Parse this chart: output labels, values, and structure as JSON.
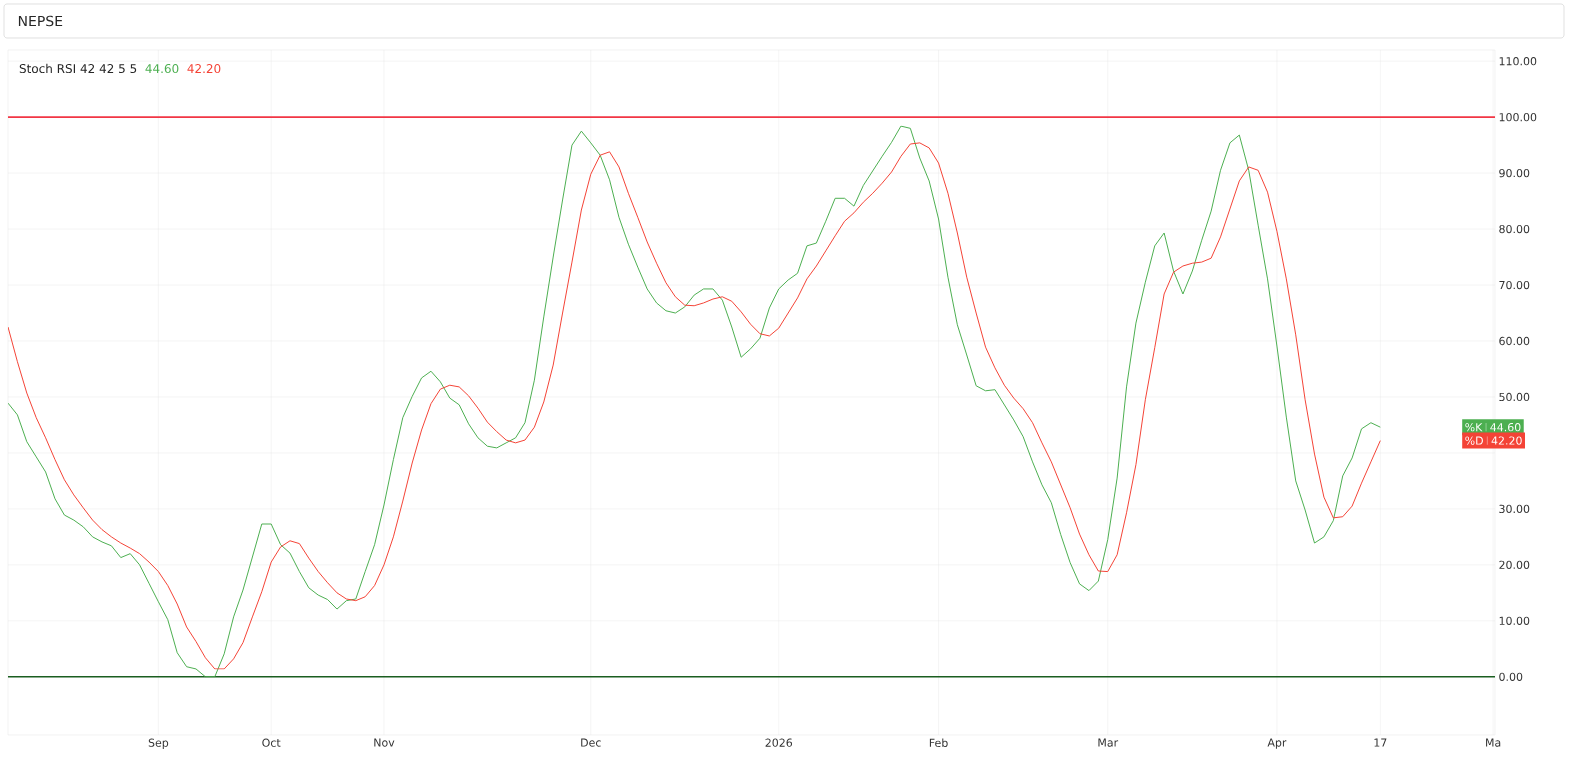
{
  "chart_data": {
    "type": "line",
    "title": "NEPSE",
    "annotations": [
      "Stoch RSI 42 42 5 5",
      "44.60",
      "42.20"
    ],
    "categories": [
      null,
      null,
      null,
      null,
      null,
      null,
      null,
      null,
      null,
      null,
      null,
      null,
      null,
      null,
      null,
      null,
      "Sep",
      null,
      null,
      null,
      null,
      null,
      null,
      null,
      null,
      null,
      null,
      null,
      "Oct",
      null,
      null,
      null,
      null,
      null,
      null,
      null,
      null,
      null,
      null,
      null,
      "Nov",
      null,
      null,
      null,
      null,
      null,
      null,
      null,
      null,
      null,
      null,
      null,
      null,
      null,
      null,
      null,
      null,
      null,
      null,
      null,
      null,
      null,
      "Dec",
      null,
      null,
      null,
      null,
      null,
      null,
      null,
      null,
      null,
      null,
      null,
      null,
      null,
      null,
      null,
      null,
      null,
      null,
      null,
      "2026",
      null,
      null,
      null,
      null,
      null,
      null,
      null,
      null,
      null,
      null,
      null,
      null,
      null,
      null,
      null,
      null,
      "Feb",
      null,
      null,
      null,
      null,
      null,
      null,
      null,
      null,
      null,
      null,
      null,
      null,
      null,
      null,
      null,
      null,
      null,
      "Mar",
      null,
      null,
      null,
      null,
      null,
      null,
      null,
      null,
      null,
      null,
      null,
      null,
      null,
      null,
      null,
      null,
      null,
      "Apr",
      null,
      null,
      null,
      null,
      null,
      null,
      null,
      null,
      null,
      null,
      "17",
      null,
      null,
      null,
      null,
      null,
      null,
      null,
      null,
      null,
      null,
      null,
      "Ma"
    ],
    "series": [
      {
        "name": "%K",
        "color": "#4caf50",
        "values": [
          48.9,
          46.8,
          42,
          39.3,
          36.6,
          31.8,
          28.9,
          28,
          26.8,
          25,
          24.1,
          23.4,
          21.3,
          22,
          20,
          16.7,
          13.4,
          10.2,
          4.3,
          1.8,
          1.4,
          0,
          0,
          4.1,
          10.7,
          15.5,
          21.4,
          27.3,
          27.3,
          23.6,
          22.1,
          18.8,
          15.9,
          14.6,
          13.8,
          12.1,
          13.6,
          13.9,
          18.8,
          23.6,
          30.7,
          38.8,
          46.3,
          50.1,
          53.4,
          54.6,
          52.7,
          49.8,
          48.6,
          45.2,
          42.7,
          41.2,
          40.9,
          41.8,
          42.7,
          45.4,
          53,
          64.3,
          75,
          85.2,
          95,
          97.5,
          95.4,
          93.2,
          88.8,
          82.1,
          77.3,
          73.2,
          69.3,
          66.8,
          65.4,
          65,
          66.1,
          68.2,
          69.3,
          69.3,
          67.3,
          62.5,
          57.1,
          58.6,
          60.5,
          65.9,
          69.3,
          70.9,
          72.1,
          77,
          77.5,
          81.4,
          85.5,
          85.5,
          84.1,
          87.8,
          90.4,
          93,
          95.5,
          98.4,
          98,
          92.7,
          88.6,
          81.8,
          71.4,
          62.9,
          57.5,
          52,
          51.1,
          51.3,
          48.6,
          45.9,
          42.9,
          38.4,
          34.3,
          31.1,
          25.4,
          20.4,
          16.6,
          15.4,
          17.1,
          24.5,
          35.5,
          51.8,
          63.2,
          70.5,
          77,
          79.3,
          72.5,
          68.4,
          72.5,
          78,
          83.2,
          90.5,
          95.4,
          96.8,
          90.5,
          80.7,
          71.1,
          59.1,
          46.4,
          35,
          29.8,
          23.9,
          25,
          27.9,
          35.9,
          39.1,
          44.3,
          45.4,
          44.6,
          null,
          null,
          null,
          null,
          null,
          null,
          null,
          null,
          null,
          null,
          null,
          null
        ]
      },
      {
        "name": "%D",
        "color": "#f44336",
        "values": [
          62.5,
          56.3,
          50.7,
          46.3,
          42.7,
          38.8,
          35.2,
          32.5,
          30.2,
          28,
          26.3,
          25,
          23.9,
          23,
          22,
          20.5,
          18.8,
          16.3,
          13,
          8.9,
          6.3,
          3.4,
          1.4,
          1.4,
          3.2,
          6.1,
          10.7,
          15.2,
          20.5,
          23.2,
          24.3,
          23.8,
          21.2,
          18.8,
          16.8,
          15,
          13.9,
          13.6,
          14.3,
          16.3,
          20,
          25,
          31.4,
          38.2,
          44.1,
          48.8,
          51.4,
          52.1,
          51.8,
          50.2,
          48,
          45.5,
          43.8,
          42.3,
          41.8,
          42.3,
          44.6,
          49.1,
          55.7,
          65,
          74.1,
          83.4,
          89.8,
          93.2,
          93.8,
          91.1,
          86.4,
          82.1,
          77.7,
          73.9,
          70.4,
          67.9,
          66.4,
          66.3,
          66.8,
          67.5,
          67.9,
          67.1,
          65.2,
          63,
          61.3,
          60.9,
          62.3,
          65,
          67.7,
          71.1,
          73.4,
          76.1,
          78.8,
          81.4,
          82.9,
          84.8,
          86.4,
          88.2,
          90.2,
          93,
          95.2,
          95.4,
          94.5,
          91.8,
          86.4,
          79.3,
          71.4,
          65,
          58.9,
          55.2,
          52.1,
          49.8,
          47.9,
          45.4,
          41.8,
          38.4,
          34.3,
          30.2,
          25.5,
          21.8,
          18.9,
          18.8,
          21.8,
          29.3,
          37.9,
          49.5,
          58.8,
          68.4,
          72.3,
          73.4,
          73.9,
          74.1,
          74.8,
          78.6,
          83.6,
          88.6,
          91.1,
          90.5,
          86.6,
          79.6,
          71.1,
          61.1,
          49.5,
          39.8,
          32.1,
          28.4,
          28.6,
          30.5,
          34.6,
          38.4,
          42.2,
          null,
          null,
          null,
          null,
          null,
          null,
          null,
          null,
          null,
          null,
          null,
          null
        ]
      }
    ],
    "ref_lines": [
      {
        "axis": "y",
        "value": 100,
        "color": "#f23645"
      },
      {
        "axis": "y",
        "value": 0,
        "color": "#1b5e20"
      }
    ],
    "ylim": [
      -10.4,
      112
    ],
    "yticks": [
      {
        "value": 0,
        "label": "0.00"
      },
      {
        "value": 10,
        "label": "10.00"
      },
      {
        "value": 20,
        "label": "20.00"
      },
      {
        "value": 30,
        "label": "30.00"
      },
      {
        "value": 40,
        "label": null
      },
      {
        "value": 50,
        "label": "50.00"
      },
      {
        "value": 60,
        "label": "60.00"
      },
      {
        "value": 70,
        "label": "70.00"
      },
      {
        "value": 80,
        "label": "80.00"
      },
      {
        "value": 90,
        "label": "90.00"
      },
      {
        "value": 100,
        "label": "100.00"
      },
      {
        "value": 110,
        "label": "110.00"
      }
    ],
    "grid": true
  }
}
